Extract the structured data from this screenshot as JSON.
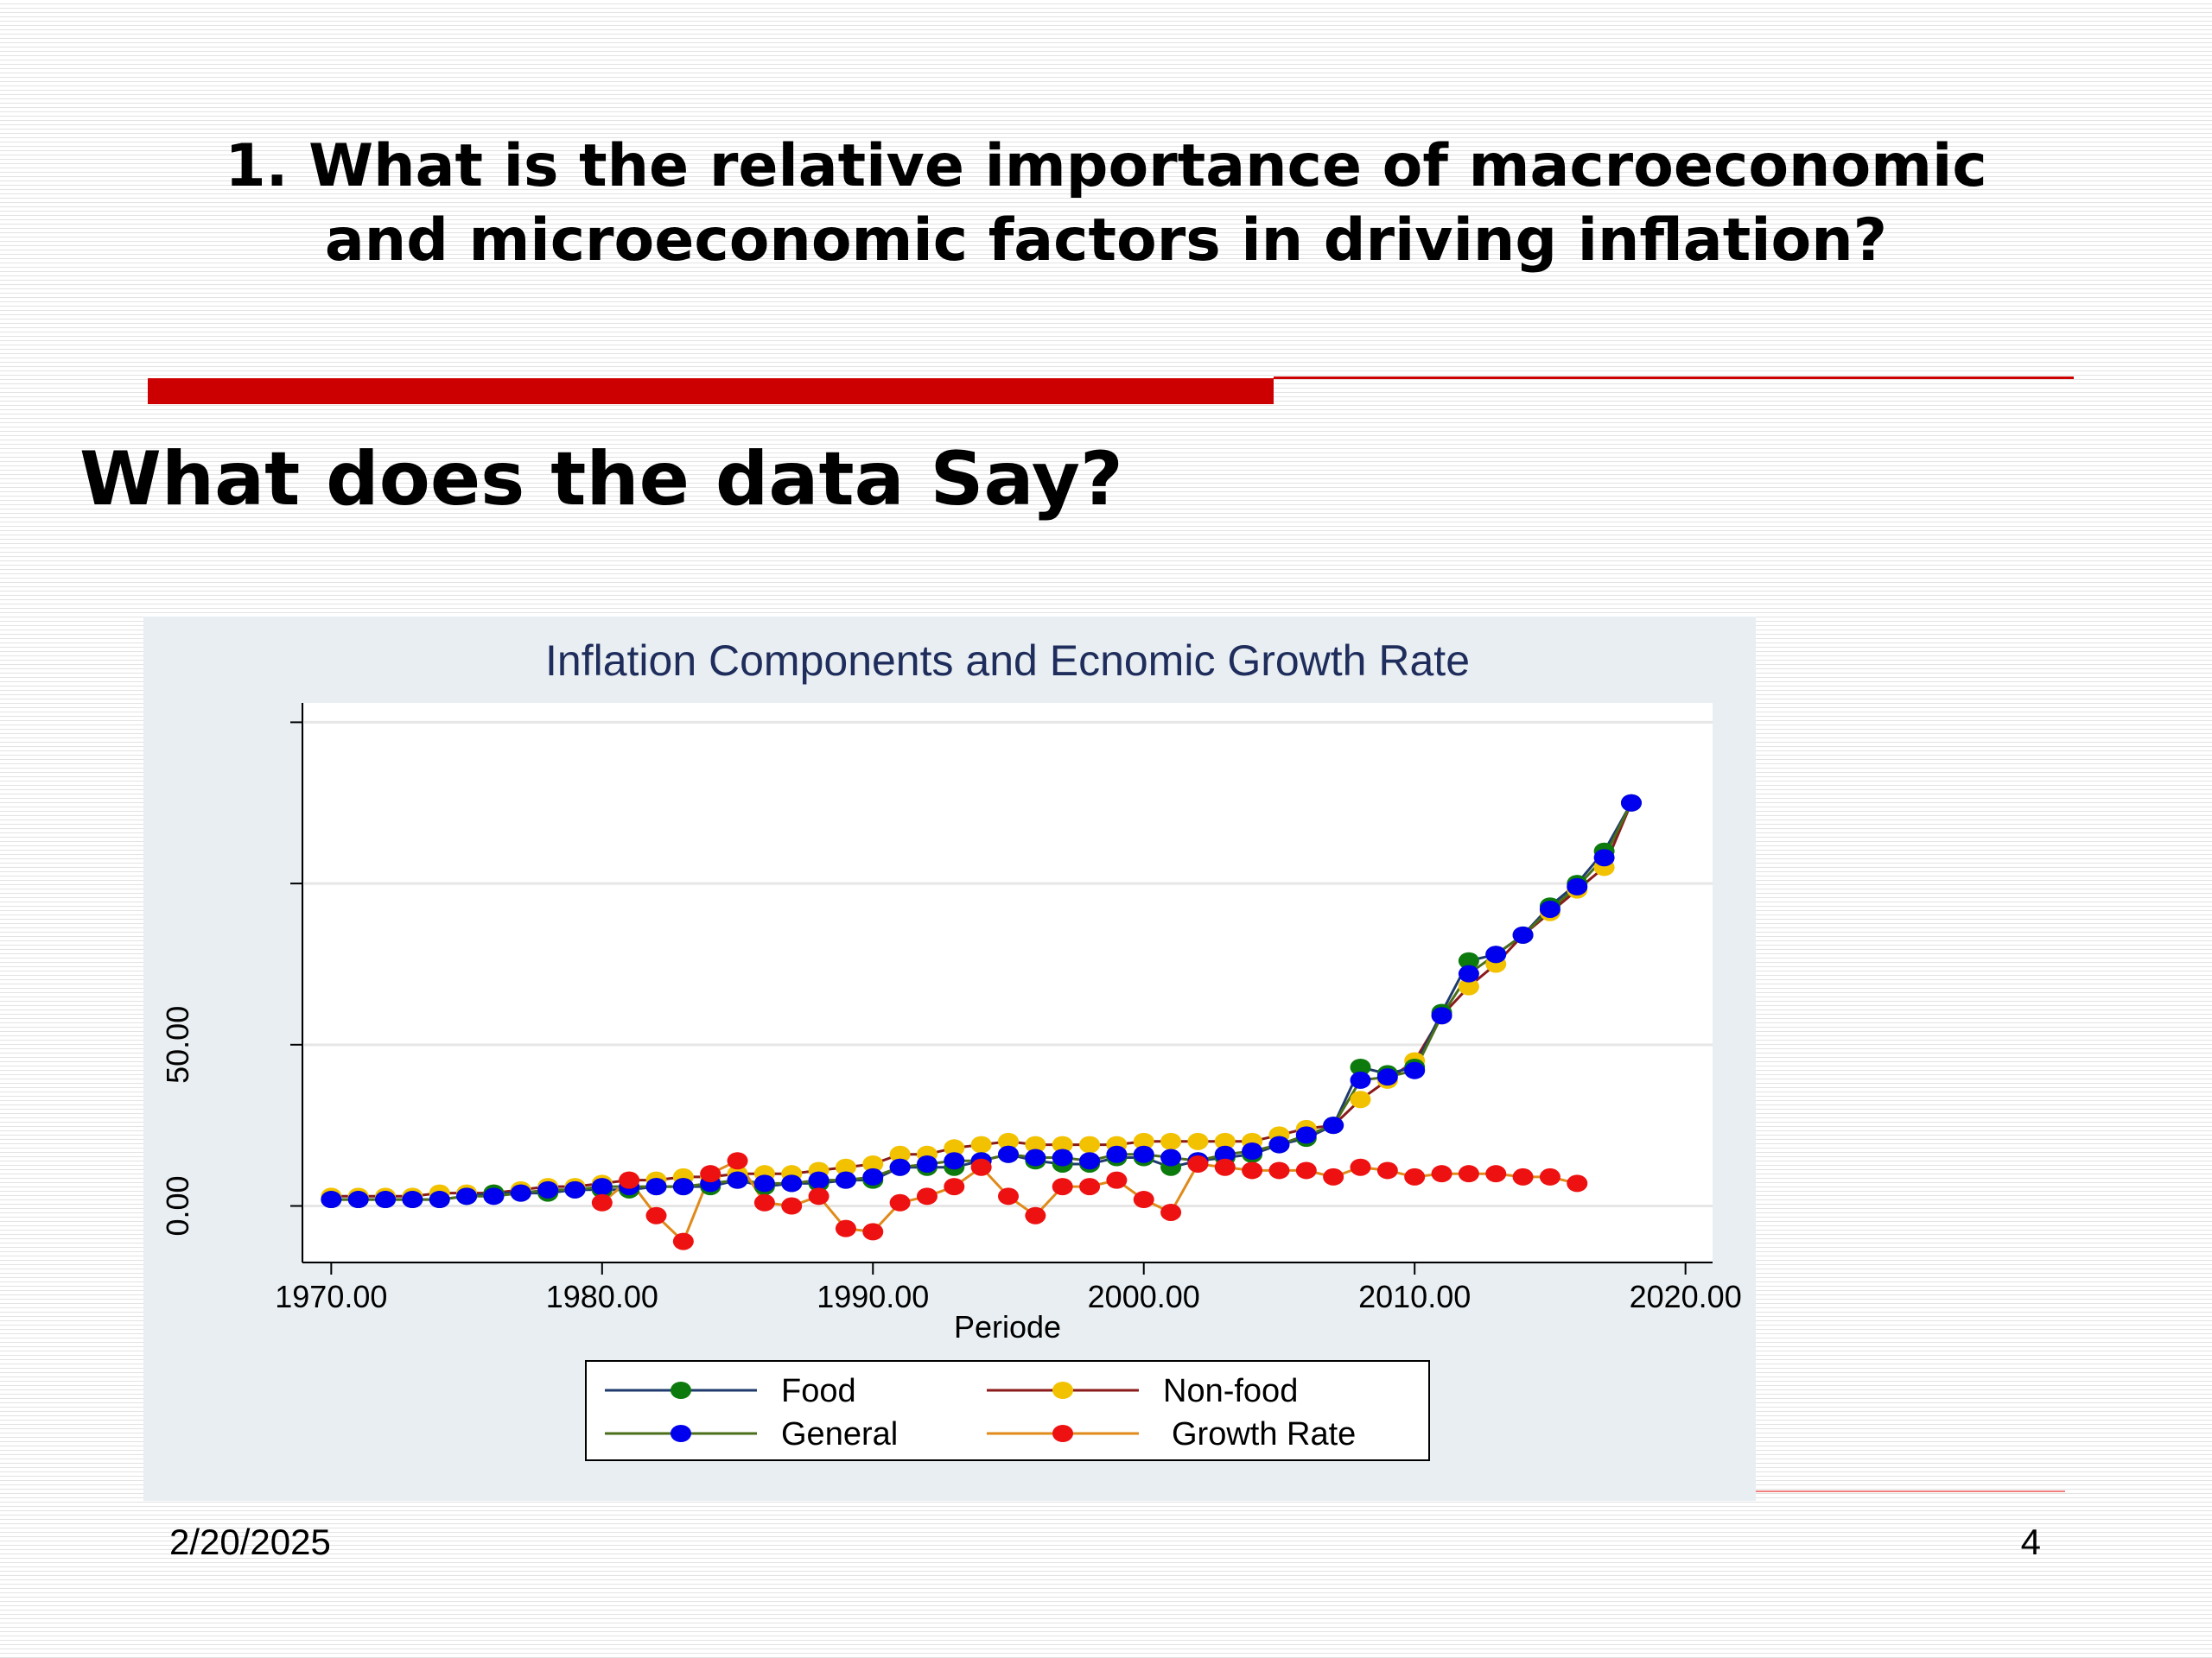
{
  "slide": {
    "title_line1": "1. What is the relative importance of macroeconomic",
    "title_line2": "and microeconomic factors in driving inflation?",
    "subtitle": "What does the data Say?",
    "date": "2/20/2025",
    "page_number": "4"
  },
  "colors": {
    "accent": "#cc0000",
    "chart_title": "#1f2d5c",
    "food": "#0c7a0c",
    "nonfood": "#f2c200",
    "general": "#0000ee",
    "growth": "#ee1111",
    "line_food": "#1f3b6e",
    "line_nonfood": "#8b1a1a",
    "line_general": "#4a6e1a",
    "line_growth": "#e08a1a"
  },
  "chart_data": {
    "type": "line",
    "title": "Inflation Components  and Ecnomic Growth Rate",
    "xlabel": "Periode",
    "ylabel": "",
    "xlim": [
      1969,
      2021
    ],
    "ylim": [
      -17,
      156
    ],
    "x_ticks": [
      1970,
      1980,
      1990,
      2000,
      2010,
      2020
    ],
    "x_tick_labels": [
      "1970.00",
      "1980.00",
      "1990.00",
      "2000.00",
      "2010.00",
      "2020.00"
    ],
    "y_ticks": [
      0,
      50,
      100,
      150
    ],
    "y_tick_labels": [
      "0.00",
      "50.00",
      "",
      ""
    ],
    "grid": true,
    "legend_position": "bottom",
    "series": [
      {
        "name": "Food",
        "color_key": "food",
        "line_key": "line_food",
        "x": [
          1970,
          1971,
          1972,
          1973,
          1974,
          1975,
          1976,
          1977,
          1978,
          1979,
          1980,
          1981,
          1982,
          1983,
          1984,
          1985,
          1986,
          1987,
          1988,
          1989,
          1990,
          1991,
          1992,
          1993,
          1994,
          1995,
          1996,
          1997,
          1998,
          1999,
          2000,
          2001,
          2002,
          2003,
          2004,
          2005,
          2006,
          2007,
          2008,
          2009,
          2010,
          2011,
          2012,
          2013,
          2014,
          2015,
          2016,
          2017,
          2018
        ],
        "y": [
          2,
          2,
          2,
          2,
          2,
          3,
          4,
          4,
          4,
          5,
          5,
          5,
          6,
          6,
          6,
          8,
          6,
          7,
          7,
          8,
          8,
          12,
          12,
          12,
          14,
          16,
          14,
          13,
          13,
          15,
          15,
          12,
          14,
          15,
          16,
          19,
          21,
          25,
          43,
          41,
          43,
          60,
          76,
          78,
          84,
          93,
          100,
          110,
          125
        ]
      },
      {
        "name": "Non-food",
        "color_key": "nonfood",
        "line_key": "line_nonfood",
        "x": [
          1970,
          1971,
          1972,
          1973,
          1974,
          1975,
          1976,
          1977,
          1978,
          1979,
          1980,
          1981,
          1982,
          1983,
          1984,
          1985,
          1986,
          1987,
          1988,
          1989,
          1990,
          1991,
          1992,
          1993,
          1994,
          1995,
          1996,
          1997,
          1998,
          1999,
          2000,
          2001,
          2002,
          2003,
          2004,
          2005,
          2006,
          2007,
          2008,
          2009,
          2010,
          2011,
          2012,
          2013,
          2014,
          2015,
          2016,
          2017,
          2018
        ],
        "y": [
          3,
          3,
          3,
          3,
          4,
          4,
          4,
          5,
          6,
          6,
          7,
          8,
          8,
          9,
          9,
          10,
          10,
          10,
          11,
          12,
          13,
          16,
          16,
          18,
          19,
          20,
          19,
          19,
          19,
          19,
          20,
          20,
          20,
          20,
          20,
          22,
          24,
          25,
          33,
          39,
          45,
          59,
          68,
          75,
          84,
          91,
          98,
          105,
          125
        ]
      },
      {
        "name": "General",
        "color_key": "general",
        "line_key": "line_general",
        "x": [
          1970,
          1971,
          1972,
          1973,
          1974,
          1975,
          1976,
          1977,
          1978,
          1979,
          1980,
          1981,
          1982,
          1983,
          1984,
          1985,
          1986,
          1987,
          1988,
          1989,
          1990,
          1991,
          1992,
          1993,
          1994,
          1995,
          1996,
          1997,
          1998,
          1999,
          2000,
          2001,
          2002,
          2003,
          2004,
          2005,
          2006,
          2007,
          2008,
          2009,
          2010,
          2011,
          2012,
          2013,
          2014,
          2015,
          2016,
          2017,
          2018
        ],
        "y": [
          2,
          2,
          2,
          2,
          2,
          3,
          3,
          4,
          5,
          5,
          6,
          6,
          6,
          6,
          7,
          8,
          7,
          7,
          8,
          8,
          9,
          12,
          13,
          14,
          14,
          16,
          15,
          15,
          14,
          16,
          16,
          15,
          14,
          16,
          17,
          19,
          22,
          25,
          39,
          40,
          42,
          59,
          72,
          78,
          84,
          92,
          99,
          108,
          125
        ]
      },
      {
        "name": "Growth Rate",
        "color_key": "growth",
        "line_key": "line_growth",
        "x": [
          1980,
          1981,
          1982,
          1983,
          1984,
          1985,
          1986,
          1987,
          1988,
          1989,
          1990,
          1991,
          1992,
          1993,
          1994,
          1995,
          1996,
          1997,
          1998,
          1999,
          2000,
          2001,
          2002,
          2003,
          2004,
          2005,
          2006,
          2007,
          2008,
          2009,
          2010,
          2011,
          2012,
          2013,
          2014,
          2015,
          2016
        ],
        "y": [
          1,
          8,
          -3,
          -11,
          10,
          14,
          1,
          0,
          3,
          -7,
          -8,
          1,
          3,
          6,
          12,
          3,
          -3,
          6,
          6,
          8,
          2,
          -2,
          13,
          12,
          11,
          11,
          11,
          9,
          12,
          11,
          9,
          10,
          10,
          10,
          9,
          9,
          7
        ]
      }
    ]
  }
}
